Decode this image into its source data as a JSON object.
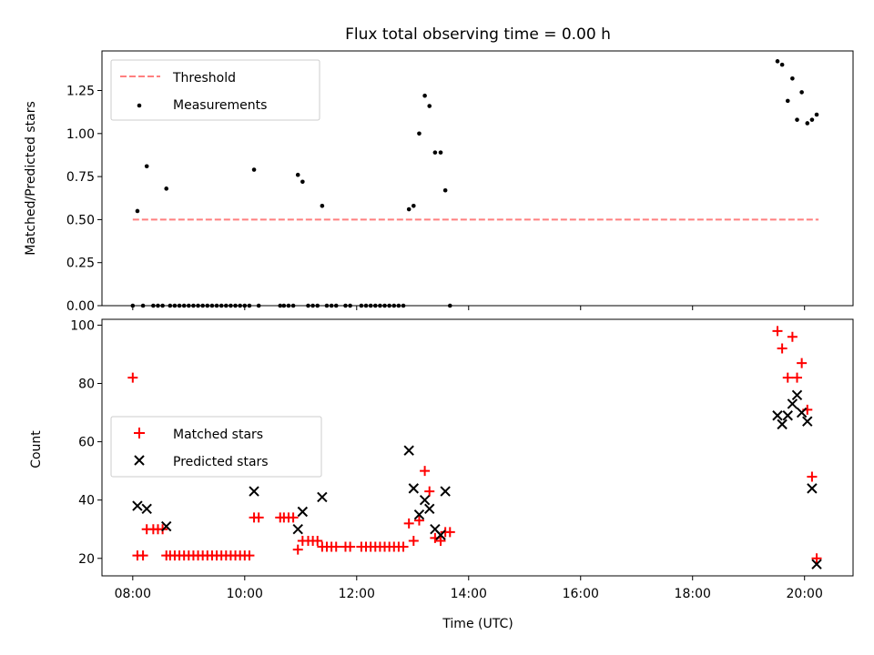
{
  "chart_data": [
    {
      "type": "scatter",
      "title": "Flux total observing time = 0.00 h",
      "ylabel": "Matched/Predicted stars",
      "xlabel": "",
      "xlim": [
        "07:27",
        "20:52"
      ],
      "ylim": [
        0,
        1.48
      ],
      "yticks": [
        0.0,
        0.25,
        0.5,
        0.75,
        1.0,
        1.25
      ],
      "ytick_labels": [
        "0.00",
        "0.25",
        "0.50",
        "0.75",
        "1.00",
        "1.25"
      ],
      "xticks": [
        "08:00",
        "10:00",
        "12:00",
        "14:00",
        "16:00",
        "18:00",
        "20:00"
      ],
      "legend": {
        "placement": "top-left",
        "entries": [
          "Threshold",
          "Measurements"
        ]
      },
      "series": [
        {
          "name": "Threshold",
          "kind": "line",
          "style": "dashed",
          "color": "#ff7f7f",
          "points": [
            [
              "08:00",
              0.5
            ],
            [
              "20:15",
              0.5
            ]
          ]
        },
        {
          "name": "Measurements",
          "kind": "scatter",
          "marker": "dot",
          "color": "#000000",
          "points": [
            [
              "08:00",
              0
            ],
            [
              "08:05",
              0.55
            ],
            [
              "08:11",
              0
            ],
            [
              "08:15",
              0.81
            ],
            [
              "08:22",
              0
            ],
            [
              "08:27",
              0
            ],
            [
              "08:32",
              0
            ],
            [
              "08:36",
              0.68
            ],
            [
              "08:40",
              0
            ],
            [
              "08:45",
              0
            ],
            [
              "08:50",
              0
            ],
            [
              "08:55",
              0
            ],
            [
              "09:00",
              0
            ],
            [
              "09:05",
              0
            ],
            [
              "09:10",
              0
            ],
            [
              "09:15",
              0
            ],
            [
              "09:20",
              0
            ],
            [
              "09:25",
              0
            ],
            [
              "09:30",
              0
            ],
            [
              "09:35",
              0
            ],
            [
              "09:40",
              0
            ],
            [
              "09:45",
              0
            ],
            [
              "09:50",
              0
            ],
            [
              "09:55",
              0
            ],
            [
              "10:00",
              0
            ],
            [
              "10:05",
              0
            ],
            [
              "10:10",
              0.79
            ],
            [
              "10:15",
              0
            ],
            [
              "10:38",
              0
            ],
            [
              "10:42",
              0
            ],
            [
              "10:47",
              0
            ],
            [
              "10:52",
              0
            ],
            [
              "10:57",
              0.76
            ],
            [
              "11:02",
              0.72
            ],
            [
              "11:08",
              0
            ],
            [
              "11:13",
              0
            ],
            [
              "11:18",
              0
            ],
            [
              "11:23",
              0.58
            ],
            [
              "11:28",
              0
            ],
            [
              "11:33",
              0
            ],
            [
              "11:38",
              0
            ],
            [
              "11:48",
              0
            ],
            [
              "11:53",
              0
            ],
            [
              "12:05",
              0
            ],
            [
              "12:10",
              0
            ],
            [
              "12:15",
              0
            ],
            [
              "12:20",
              0
            ],
            [
              "12:25",
              0
            ],
            [
              "12:30",
              0
            ],
            [
              "12:35",
              0
            ],
            [
              "12:40",
              0
            ],
            [
              "12:45",
              0
            ],
            [
              "12:50",
              0
            ],
            [
              "12:56",
              0.56
            ],
            [
              "13:01",
              0.58
            ],
            [
              "13:07",
              1.0
            ],
            [
              "13:13",
              1.22
            ],
            [
              "13:18",
              1.16
            ],
            [
              "13:24",
              0.89
            ],
            [
              "13:30",
              0.89
            ],
            [
              "13:35",
              0.67
            ],
            [
              "13:40",
              0
            ],
            [
              "19:31",
              1.42
            ],
            [
              "19:36",
              1.4
            ],
            [
              "19:42",
              1.19
            ],
            [
              "19:47",
              1.32
            ],
            [
              "19:52",
              1.08
            ],
            [
              "19:57",
              1.24
            ],
            [
              "20:03",
              1.06
            ],
            [
              "20:08",
              1.08
            ],
            [
              "20:13",
              1.11
            ]
          ]
        }
      ]
    },
    {
      "type": "scatter",
      "title": "",
      "ylabel": "Count",
      "xlabel": "Time (UTC)",
      "xlim": [
        "07:27",
        "20:52"
      ],
      "ylim": [
        14,
        102
      ],
      "yticks": [
        20,
        40,
        60,
        80,
        100
      ],
      "ytick_labels": [
        "20",
        "40",
        "60",
        "80",
        "100"
      ],
      "xticks": [
        "08:00",
        "10:00",
        "12:00",
        "14:00",
        "16:00",
        "18:00",
        "20:00"
      ],
      "xtick_labels": [
        "08:00",
        "10:00",
        "12:00",
        "14:00",
        "16:00",
        "18:00",
        "20:00"
      ],
      "legend": {
        "placement": "center-left",
        "entries": [
          "Matched stars",
          "Predicted stars"
        ]
      },
      "series": [
        {
          "name": "Matched stars",
          "kind": "scatter",
          "marker": "plus",
          "color": "#ff0000",
          "points": [
            [
              "08:00",
              82
            ],
            [
              "08:05",
              21
            ],
            [
              "08:11",
              21
            ],
            [
              "08:15",
              30
            ],
            [
              "08:22",
              30
            ],
            [
              "08:27",
              30
            ],
            [
              "08:32",
              30
            ],
            [
              "08:36",
              21
            ],
            [
              "08:40",
              21
            ],
            [
              "08:45",
              21
            ],
            [
              "08:50",
              21
            ],
            [
              "08:55",
              21
            ],
            [
              "09:00",
              21
            ],
            [
              "09:05",
              21
            ],
            [
              "09:10",
              21
            ],
            [
              "09:15",
              21
            ],
            [
              "09:20",
              21
            ],
            [
              "09:25",
              21
            ],
            [
              "09:30",
              21
            ],
            [
              "09:35",
              21
            ],
            [
              "09:40",
              21
            ],
            [
              "09:45",
              21
            ],
            [
              "09:50",
              21
            ],
            [
              "09:55",
              21
            ],
            [
              "10:00",
              21
            ],
            [
              "10:05",
              21
            ],
            [
              "10:10",
              34
            ],
            [
              "10:15",
              34
            ],
            [
              "10:38",
              34
            ],
            [
              "10:42",
              34
            ],
            [
              "10:47",
              34
            ],
            [
              "10:52",
              34
            ],
            [
              "10:57",
              23
            ],
            [
              "11:02",
              26
            ],
            [
              "11:08",
              26
            ],
            [
              "11:13",
              26
            ],
            [
              "11:18",
              26
            ],
            [
              "11:23",
              24
            ],
            [
              "11:28",
              24
            ],
            [
              "11:33",
              24
            ],
            [
              "11:38",
              24
            ],
            [
              "11:48",
              24
            ],
            [
              "11:53",
              24
            ],
            [
              "12:05",
              24
            ],
            [
              "12:10",
              24
            ],
            [
              "12:15",
              24
            ],
            [
              "12:20",
              24
            ],
            [
              "12:25",
              24
            ],
            [
              "12:30",
              24
            ],
            [
              "12:35",
              24
            ],
            [
              "12:40",
              24
            ],
            [
              "12:45",
              24
            ],
            [
              "12:50",
              24
            ],
            [
              "12:56",
              32
            ],
            [
              "13:01",
              26
            ],
            [
              "13:07",
              33
            ],
            [
              "13:13",
              50
            ],
            [
              "13:18",
              43
            ],
            [
              "13:24",
              27
            ],
            [
              "13:30",
              26
            ],
            [
              "13:35",
              29
            ],
            [
              "13:40",
              29
            ],
            [
              "19:31",
              98
            ],
            [
              "19:36",
              92
            ],
            [
              "19:42",
              82
            ],
            [
              "19:47",
              96
            ],
            [
              "19:52",
              82
            ],
            [
              "19:57",
              87
            ],
            [
              "20:03",
              71
            ],
            [
              "20:08",
              48
            ],
            [
              "20:13",
              20
            ]
          ]
        },
        {
          "name": "Predicted stars",
          "kind": "scatter",
          "marker": "x",
          "color": "#000000",
          "points": [
            [
              "08:05",
              38
            ],
            [
              "08:15",
              37
            ],
            [
              "08:36",
              31
            ],
            [
              "10:10",
              43
            ],
            [
              "10:57",
              30
            ],
            [
              "11:02",
              36
            ],
            [
              "11:23",
              41
            ],
            [
              "12:56",
              57
            ],
            [
              "13:01",
              44
            ],
            [
              "13:07",
              35
            ],
            [
              "13:13",
              40
            ],
            [
              "13:18",
              37
            ],
            [
              "13:24",
              30
            ],
            [
              "13:30",
              28
            ],
            [
              "13:35",
              43
            ],
            [
              "19:31",
              69
            ],
            [
              "19:36",
              66
            ],
            [
              "19:42",
              69
            ],
            [
              "19:47",
              73
            ],
            [
              "19:52",
              76
            ],
            [
              "19:57",
              70
            ],
            [
              "20:03",
              67
            ],
            [
              "20:08",
              44
            ],
            [
              "20:13",
              18
            ]
          ]
        }
      ]
    }
  ]
}
